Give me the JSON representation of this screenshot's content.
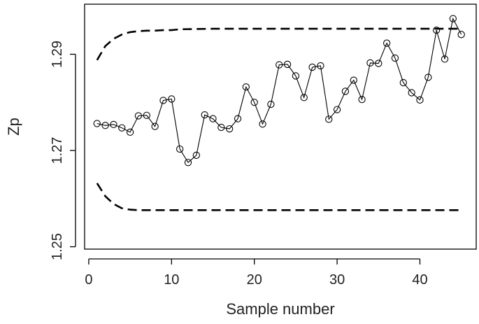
{
  "chart_data": {
    "type": "line",
    "title": "",
    "xlabel": "Sample number",
    "ylabel": "Zp",
    "xlim": [
      -0.5,
      46.8
    ],
    "ylim": [
      1.2495,
      1.3004
    ],
    "xticks": [
      0,
      10,
      20,
      30,
      40
    ],
    "yticks": [
      1.25,
      1.27,
      1.29
    ],
    "grid": false,
    "legend": "none",
    "series": [
      {
        "x": [
          1,
          2,
          3,
          4,
          5,
          6,
          7,
          8,
          9,
          10,
          11,
          12,
          13,
          14,
          15,
          16,
          17,
          18,
          19,
          20,
          21,
          22,
          23,
          24,
          25,
          26,
          27,
          28,
          29,
          30,
          31,
          32,
          33,
          34,
          35,
          36,
          37,
          38,
          39,
          40,
          41,
          42,
          43,
          44,
          45
        ],
        "values": [
          1.2756,
          1.2752,
          1.2754,
          1.2747,
          1.2738,
          1.2772,
          1.2773,
          1.275,
          1.2804,
          1.2807,
          1.2703,
          1.2675,
          1.269,
          1.2774,
          1.2766,
          1.2748,
          1.2745,
          1.2766,
          1.2832,
          1.28,
          1.2755,
          1.2796,
          1.2878,
          1.2879,
          1.2855,
          1.281,
          1.2873,
          1.2876,
          1.2765,
          1.2785,
          1.2823,
          1.2846,
          1.2806,
          1.2882,
          1.2881,
          1.2923,
          1.2892,
          1.2841,
          1.282,
          1.2805,
          1.2852,
          1.295,
          1.289,
          1.2974,
          1.2941
        ],
        "style": "solid-with-open-circles"
      }
    ],
    "control_limits": {
      "upper": {
        "x": [
          1,
          2,
          3,
          4,
          5,
          6,
          7,
          8,
          9,
          10,
          11,
          15,
          20,
          25,
          30,
          35,
          40,
          45
        ],
        "values": [
          1.2888,
          1.2917,
          1.2932,
          1.2941,
          1.2946,
          1.2948,
          1.2949,
          1.2949,
          1.295,
          1.295,
          1.2952,
          1.2953,
          1.2953,
          1.2953,
          1.2953,
          1.2953,
          1.2953,
          1.2953
        ],
        "style": "dashed"
      },
      "lower": {
        "x": [
          1,
          2,
          3,
          4,
          5,
          6,
          7,
          8,
          9,
          10,
          11,
          15,
          20,
          25,
          30,
          35,
          40,
          45
        ],
        "values": [
          1.2632,
          1.2605,
          1.2589,
          1.258,
          1.2577,
          1.2576,
          1.2576,
          1.2576,
          1.2576,
          1.2576,
          1.2576,
          1.2576,
          1.2576,
          1.2576,
          1.2576,
          1.2576,
          1.2576,
          1.2576
        ],
        "style": "dashed"
      }
    }
  }
}
